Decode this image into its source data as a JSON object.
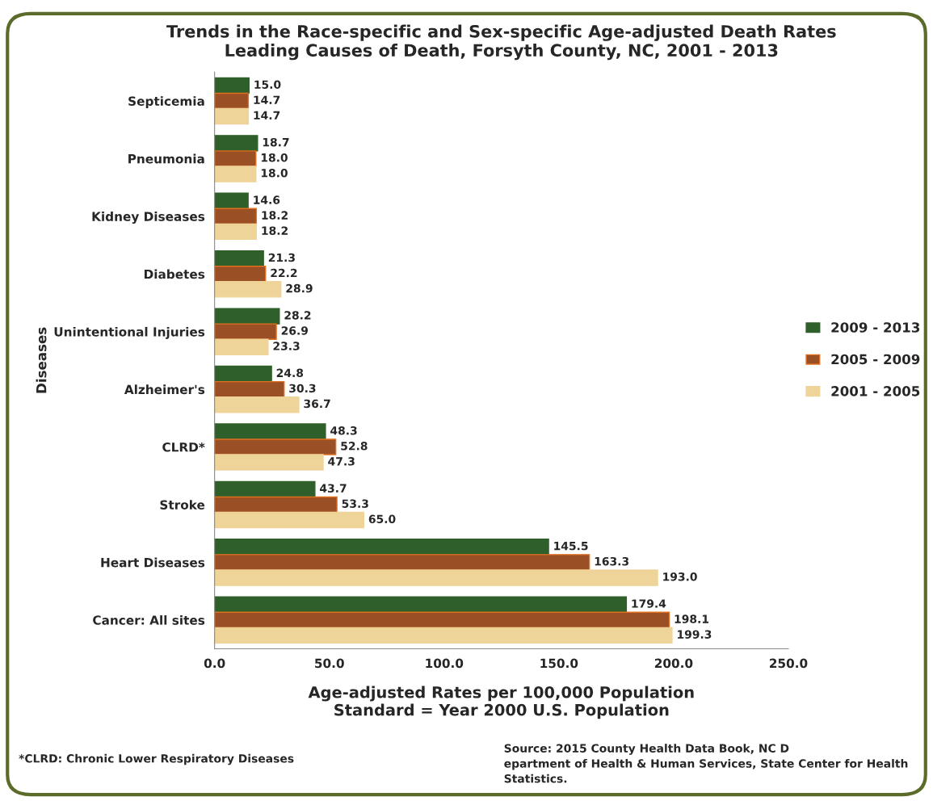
{
  "chart_data": {
    "type": "bar",
    "orientation": "horizontal",
    "title": "Trends in the Race-specific and Sex-specific Age-adjusted Death Rates\nLeading Causes of Death, Forsyth County, NC, 2001 - 2013",
    "xlabel": "Age-adjusted Rates per 100,000 Population\nStandard = Year 2000 U.S. Population",
    "ylabel": "Diseases",
    "categories": [
      "Septicemia",
      "Pneumonia",
      "Kidney Diseases",
      "Diabetes",
      "Unintentional Injuries",
      "Alzheimer's",
      "CLRD*",
      "Stroke",
      "Heart Diseases",
      "Cancer: All sites"
    ],
    "series": [
      {
        "name": "2009 - 2013",
        "color": "#2f5f2a",
        "values": [
          15.0,
          18.7,
          14.6,
          21.3,
          28.2,
          24.8,
          48.3,
          43.7,
          145.5,
          179.4
        ]
      },
      {
        "name": "2005 - 2009",
        "color": "#9a4f24",
        "values": [
          14.7,
          18.0,
          18.2,
          22.2,
          26.9,
          30.3,
          52.8,
          53.3,
          163.3,
          198.1
        ]
      },
      {
        "name": "2001 - 2005",
        "color": "#efd49a",
        "values": [
          14.7,
          18.0,
          18.2,
          28.9,
          23.3,
          36.7,
          47.3,
          65.0,
          193.0,
          199.3
        ]
      }
    ],
    "xlim": [
      0,
      250
    ],
    "xticks": [
      {
        "value": 0,
        "label": "0.0"
      },
      {
        "value": 50,
        "label": "50.0"
      },
      {
        "value": 100,
        "label": "100.0"
      },
      {
        "value": 150,
        "label": "150.0"
      },
      {
        "value": 200,
        "label": "200.0"
      },
      {
        "value": 250,
        "label": "250.0"
      }
    ],
    "value_labels": [
      [
        "15.0",
        "18.7",
        "14.6",
        "21.3",
        "28.2",
        "24.8",
        "48.3",
        "43.7",
        "145.5",
        "179.4"
      ],
      [
        "14.7",
        "18.0",
        "18.2",
        "22.2",
        "26.9",
        "30.3",
        "52.8",
        "53.3",
        "163.3",
        "198.1"
      ],
      [
        "14.7",
        "18.0",
        "18.2",
        "28.9",
        "23.3",
        "36.7",
        "47.3",
        "65.0",
        "193.0",
        "199.3"
      ]
    ],
    "legend": "right",
    "grid": false,
    "annotations": [
      "*CLRD: Chronic Lower Respiratory Diseases",
      "Source: 2015 County Health Data Book, NC D\nepartment of Health & Human Services, State Center for Health\nStatistics."
    ]
  }
}
